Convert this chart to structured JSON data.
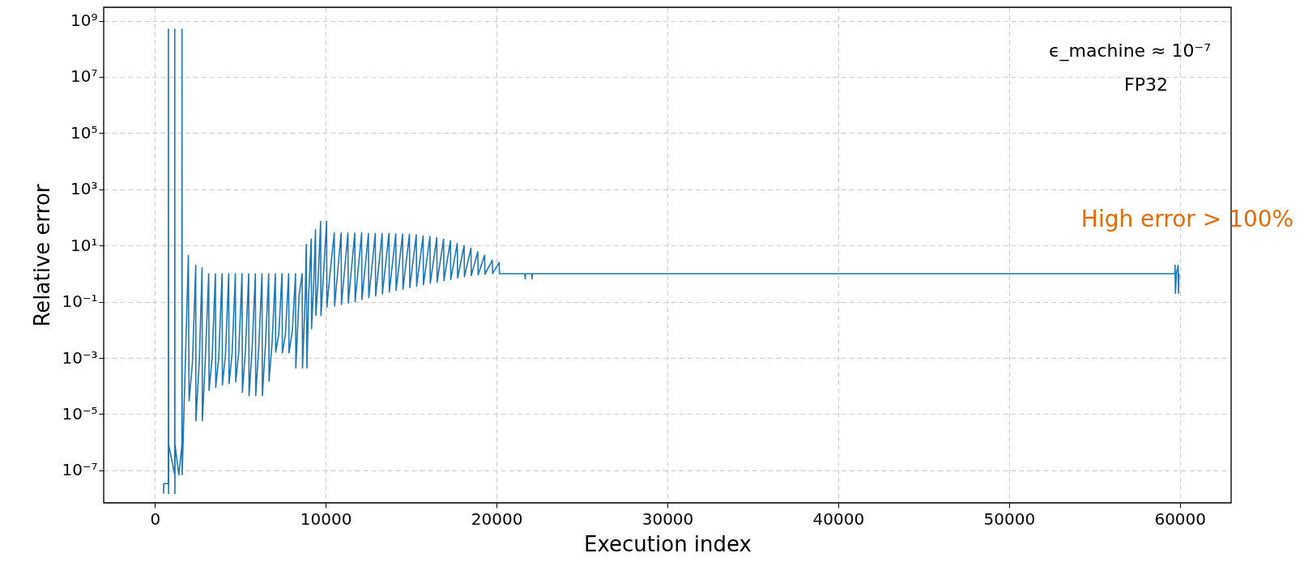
{
  "chart_data": {
    "type": "line",
    "xlabel": "Execution index",
    "ylabel": "Relative error",
    "log": "y",
    "grid": true,
    "line_style": "solid",
    "marker": "none",
    "xlim": [
      -3000,
      63000
    ],
    "xticks": [
      0,
      10000,
      20000,
      30000,
      40000,
      50000,
      60000
    ],
    "ylim": [
      7e-09,
      3000000000.0
    ],
    "yticks": [
      {
        "value": 1e-07,
        "label": "10⁻⁷"
      },
      {
        "value": 1e-05,
        "label": "10⁻⁵"
      },
      {
        "value": 0.001,
        "label": "10⁻³"
      },
      {
        "value": 0.1,
        "label": "10⁻¹"
      },
      {
        "value": 10,
        "label": "10¹"
      },
      {
        "value": 1000,
        "label": "10³"
      },
      {
        "value": 100000,
        "label": "10⁵"
      },
      {
        "value": 10000000,
        "label": "10⁷"
      },
      {
        "value": 1000000000,
        "label": "10⁹"
      }
    ],
    "annotations": [
      "High error > 100%",
      "ϵ_machine ≈ 10⁻⁷",
      "FP32"
    ],
    "series": [
      {
        "color": "#1f77b4",
        "x": [
          500,
          520,
          784,
          790,
          800,
          810,
          1157,
          1160,
          1170,
          1180,
          1400,
          1580,
          1586,
          1595,
          1959,
          2000,
          2200,
          2389,
          2400,
          2600,
          2762,
          2775,
          2950,
          3150,
          3170,
          3350,
          3540,
          3560,
          3740,
          3930,
          3950,
          4130,
          4320,
          4340,
          4520,
          4710,
          4730,
          4910,
          5100,
          5120,
          5300,
          5490,
          5510,
          5690,
          5880,
          5900,
          6080,
          6270,
          6290,
          6470,
          6660,
          6680,
          6860,
          7050,
          7070,
          7250,
          7440,
          7460,
          7640,
          7830,
          7850,
          8050,
          8230,
          8250,
          8440,
          8620,
          8640,
          8800,
          8860,
          8900,
          9000,
          9150,
          9170,
          9300,
          9400,
          9420,
          9550,
          9700,
          9720,
          9850,
          10050,
          10070,
          10250,
          10500,
          10520,
          10900,
          10920,
          11300,
          11320,
          11700,
          11720,
          12100,
          12120,
          12500,
          12520,
          12900,
          12920,
          13300,
          13320,
          13700,
          13720,
          14100,
          14120,
          14500,
          14520,
          14900,
          14920,
          15300,
          15320,
          15700,
          15720,
          16100,
          16120,
          16500,
          16520,
          16900,
          16920,
          17300,
          17320,
          17700,
          17720,
          18100,
          18120,
          18500,
          18520,
          18900,
          18920,
          19300,
          19320,
          19750,
          19770,
          20150,
          20170,
          21650,
          21680,
          21700,
          22050,
          22080,
          22100,
          59700,
          59720,
          59740,
          59800,
          59900,
          59920,
          59950
        ],
        "values": [
          1.5e-08,
          3.4e-08,
          3.4e-08,
          500000000.0,
          1.5e-08,
          8e-07,
          7e-08,
          500000000.0,
          1.5e-08,
          8e-07,
          7e-08,
          8e-07,
          500000000.0,
          7e-08,
          4.5,
          3e-05,
          0.0007,
          2,
          5.8e-06,
          0.0008,
          1.6,
          5.8e-06,
          0.0009,
          1,
          7e-05,
          0.001,
          1,
          9e-05,
          0.0011,
          1,
          0.00011,
          0.0013,
          1,
          0.00012,
          0.0015,
          1,
          0.00014,
          0.0017,
          1,
          6e-05,
          0.0019,
          1,
          4.5e-05,
          0.0021,
          1,
          4.5e-05,
          0.0024,
          1,
          4.5e-05,
          0.0028,
          1,
          0.00015,
          0.0035,
          1,
          0.0016,
          0.007,
          1,
          0.0015,
          0.007,
          1,
          0.0015,
          0.01,
          1,
          0.00044,
          0.17,
          1,
          0.00044,
          0.17,
          11,
          0.00044,
          0.17,
          17,
          0.011,
          0.5,
          37,
          0.033,
          0.5,
          72,
          0.033,
          0.6,
          72,
          0.065,
          1,
          28,
          0.07,
          28,
          0.08,
          28,
          0.09,
          28,
          0.1,
          28,
          0.12,
          27,
          0.14,
          27,
          0.16,
          27,
          0.19,
          27,
          0.22,
          26,
          0.25,
          26,
          0.28,
          25,
          0.32,
          24,
          0.36,
          22,
          0.4,
          21,
          0.45,
          19,
          0.5,
          17,
          0.56,
          15,
          0.62,
          12,
          0.7,
          10,
          0.78,
          8,
          0.85,
          6,
          0.9,
          4.5,
          0.95,
          3,
          1,
          2.5,
          1,
          1,
          0.65,
          1,
          1,
          0.65,
          1,
          1,
          2,
          0.2,
          1,
          2,
          0.2,
          1
        ]
      }
    ]
  }
}
